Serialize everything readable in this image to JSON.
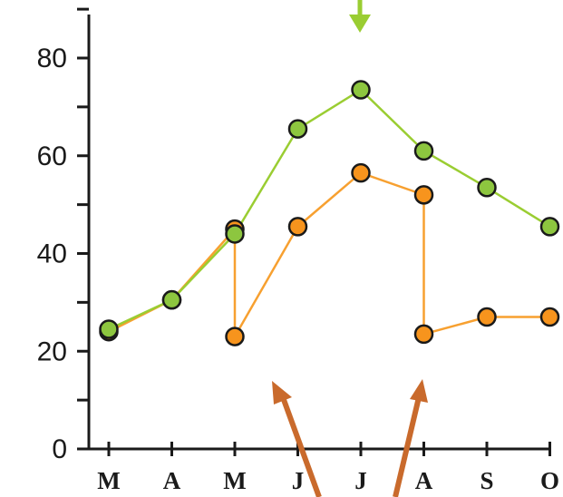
{
  "chart_data": {
    "type": "line",
    "categories": [
      "M",
      "A",
      "M",
      "J",
      "J",
      "A",
      "S",
      "O"
    ],
    "x": [
      0,
      1,
      2,
      3,
      4,
      5,
      6,
      7
    ],
    "ylim": [
      0,
      90
    ],
    "yticks": [
      0,
      20,
      40,
      60,
      80
    ],
    "grid": false,
    "series": [
      {
        "color": "#9acd32",
        "marker_color": "#8dc63f",
        "points": [
          [
            0,
            24.5
          ],
          [
            1,
            30.5
          ],
          [
            2,
            44
          ],
          [
            3,
            65.5
          ],
          [
            4,
            73.5
          ],
          [
            5,
            61
          ],
          [
            6,
            53.5
          ],
          [
            7,
            45.5
          ]
        ]
      },
      {
        "color": "#f7a030",
        "marker_color": "#f7941d",
        "points": [
          [
            0,
            24
          ],
          [
            1,
            30.5
          ],
          [
            2,
            45
          ],
          [
            2,
            23
          ],
          [
            3,
            45.5
          ],
          [
            4,
            56.5
          ],
          [
            5,
            52
          ],
          [
            5,
            23.5
          ],
          [
            6,
            27
          ],
          [
            7,
            27
          ]
        ]
      }
    ],
    "annotations": [
      {
        "type": "arrow",
        "direction": "down",
        "color": "#9acd32",
        "target_x": 4
      },
      {
        "type": "arrow",
        "direction": "up-left",
        "color": "#c96a2c",
        "target_x": 3
      },
      {
        "type": "arrow",
        "direction": "up-right",
        "color": "#c96a2c",
        "target_x": 5
      }
    ]
  }
}
